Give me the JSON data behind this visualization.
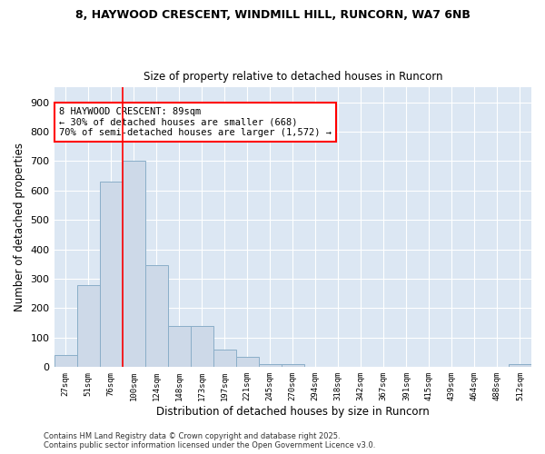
{
  "title_line1": "8, HAYWOOD CRESCENT, WINDMILL HILL, RUNCORN, WA7 6NB",
  "title_line2": "Size of property relative to detached houses in Runcorn",
  "xlabel": "Distribution of detached houses by size in Runcorn",
  "ylabel": "Number of detached properties",
  "bar_color": "#cdd9e8",
  "bar_edge_color": "#8aaec8",
  "background_color": "#dce7f3",
  "categories": [
    "27sqm",
    "51sqm",
    "76sqm",
    "100sqm",
    "124sqm",
    "148sqm",
    "173sqm",
    "197sqm",
    "221sqm",
    "245sqm",
    "270sqm",
    "294sqm",
    "318sqm",
    "342sqm",
    "367sqm",
    "391sqm",
    "415sqm",
    "439sqm",
    "464sqm",
    "488sqm",
    "512sqm"
  ],
  "values": [
    40,
    280,
    630,
    700,
    345,
    140,
    140,
    60,
    35,
    10,
    10,
    0,
    0,
    0,
    0,
    0,
    0,
    0,
    0,
    0,
    10
  ],
  "ylim": [
    0,
    950
  ],
  "yticks": [
    0,
    100,
    200,
    300,
    400,
    500,
    600,
    700,
    800,
    900
  ],
  "red_line_x": 2.5,
  "annotation_title": "8 HAYWOOD CRESCENT: 89sqm",
  "annotation_line2": "← 30% of detached houses are smaller (668)",
  "annotation_line3": "70% of semi-detached houses are larger (1,572) →",
  "footnote_line1": "Contains HM Land Registry data © Crown copyright and database right 2025.",
  "footnote_line2": "Contains public sector information licensed under the Open Government Licence v3.0."
}
